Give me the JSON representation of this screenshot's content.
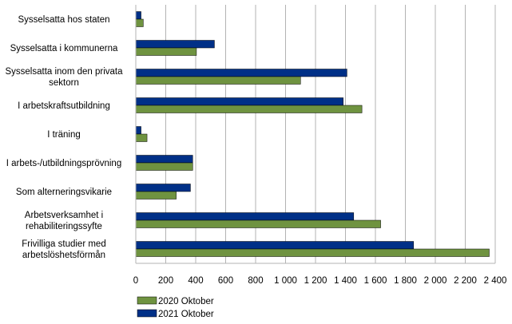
{
  "chart_data": {
    "type": "bar",
    "orientation": "horizontal",
    "categories": [
      [
        "Sysselsatta hos staten"
      ],
      [
        "Sysselsatta i kommunerna"
      ],
      [
        "Sysselsatta inom den privata",
        "sektorn"
      ],
      [
        "I arbetskraftsutbildning"
      ],
      [
        "I träning"
      ],
      [
        "I arbets-/utbildningsprövning"
      ],
      [
        "Som alterneringsvikarie"
      ],
      [
        "Arbetsverksamhet i",
        "rehabiliteringssyfte"
      ],
      [
        "Frivilliga studier med",
        "arbetslöshetsförmån"
      ]
    ],
    "series": [
      {
        "name": "2021 Oktober",
        "color": "#003087",
        "values": [
          35,
          525,
          1410,
          1385,
          35,
          380,
          365,
          1455,
          1855
        ]
      },
      {
        "name": "2020 Oktober",
        "color": "#6f9340",
        "values": [
          50,
          405,
          1100,
          1510,
          75,
          380,
          270,
          1635,
          2360
        ]
      }
    ],
    "x_ticks": [
      "0",
      "200",
      "400",
      "600",
      "800",
      "1 000",
      "1 200",
      "1 400",
      "1 600",
      "1 800",
      "2 000",
      "2 200",
      "2 400"
    ],
    "xlim": [
      0,
      2400
    ],
    "grid": true,
    "legend": {
      "position": "bottom-left",
      "items": [
        {
          "label": "2020 Oktober",
          "color": "#6f9340"
        },
        {
          "label": "2021 Oktober",
          "color": "#003087"
        }
      ]
    }
  }
}
